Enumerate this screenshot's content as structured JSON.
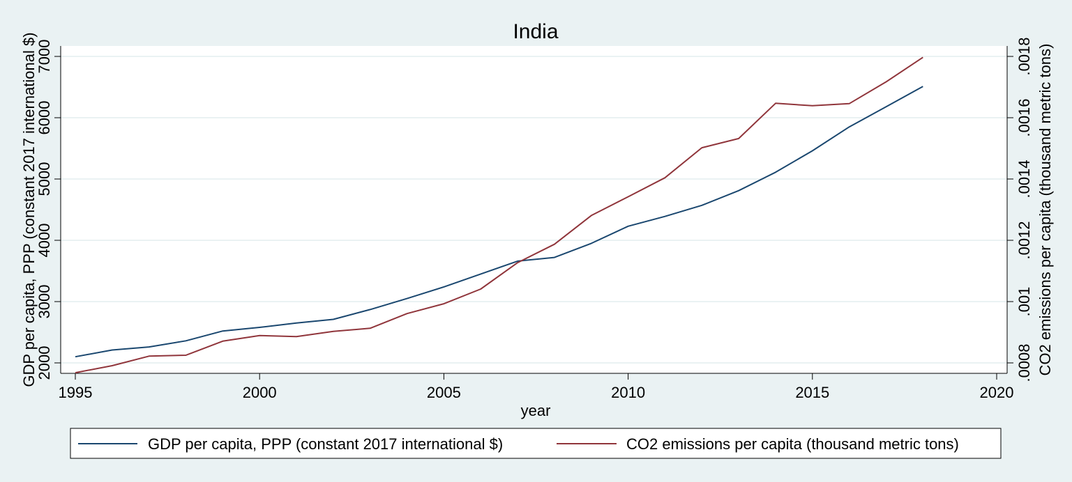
{
  "chart_data": {
    "type": "line",
    "title": "India",
    "xlabel": "year",
    "ylabel_left": "GDP per capita, PPP (constant 2017 international $)",
    "ylabel_right": "CO2 emissions per capita (thousand metric tons)",
    "xlim": [
      1995,
      2020
    ],
    "ylim_left": [
      2000,
      7000
    ],
    "ylim_right": [
      0.0008,
      0.0018
    ],
    "x_ticks": [
      "1995",
      "2000",
      "2005",
      "2010",
      "2015",
      "2020"
    ],
    "y_left_ticks": [
      "2000",
      "3000",
      "4000",
      "5000",
      "6000",
      "7000"
    ],
    "y_right_ticks": [
      ".0008",
      ".001",
      ".0012",
      ".0014",
      ".0016",
      ".0018"
    ],
    "grid": true,
    "legend_position": "bottom",
    "x": [
      1995,
      1996,
      1997,
      1998,
      1999,
      2000,
      2001,
      2002,
      2003,
      2004,
      2005,
      2006,
      2007,
      2008,
      2009,
      2010,
      2011,
      2012,
      2013,
      2014,
      2015,
      2016,
      2017,
      2018
    ],
    "series": [
      {
        "name": "GDP per capita, PPP (constant 2017 international $)",
        "axis": "left",
        "color": "#1a476f",
        "values": [
          2100,
          2210,
          2260,
          2360,
          2520,
          2580,
          2650,
          2710,
          2870,
          3050,
          3240,
          3450,
          3660,
          3720,
          3950,
          4230,
          4390,
          4570,
          4810,
          5110,
          5460,
          5850,
          6180,
          6510
        ]
      },
      {
        "name": "CO2 emissions per capita (thousand metric tons)",
        "axis": "right",
        "color": "#90353b",
        "values": [
          0.000768,
          0.000791,
          0.000822,
          0.000825,
          0.000871,
          0.000889,
          0.000886,
          0.000903,
          0.000913,
          0.000961,
          0.000993,
          0.001041,
          0.001127,
          0.001187,
          0.001281,
          0.001342,
          0.001404,
          0.001502,
          0.001532,
          0.001647,
          0.001639,
          0.001646,
          0.001717,
          0.001797
        ]
      }
    ]
  }
}
